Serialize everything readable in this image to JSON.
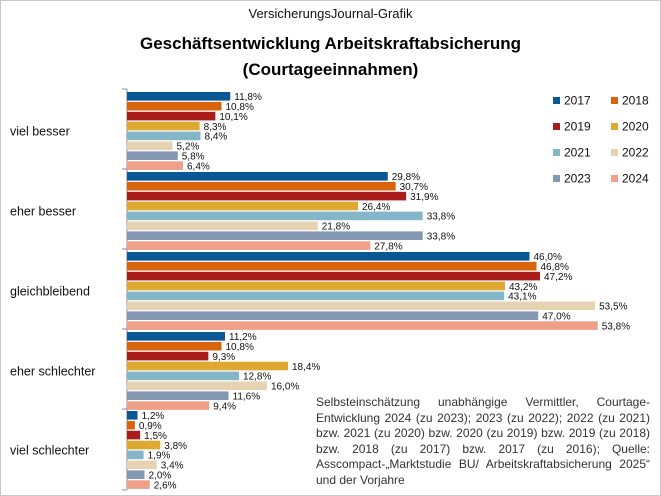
{
  "header": {
    "source_line": "VersicherungsJournal-Grafik",
    "title": "Geschäftsentwicklung  Arbeitskraftabsicherung",
    "subtitle": "(Courtageeinnahmen)"
  },
  "note": "Selbsteinschätzung unabhängige Vermittler, Courtage-Entwicklung 2024 (zu 2023); 2023 (zu 2022); 2022 (zu 2021) bzw. 2021 (zu 2020) bzw. 2020 (zu 2019) bzw. 2019 (zu 2018) bzw. 2018 (zu 2017) bzw.  2017 (zu 2016); Quelle: Asscompact-„Marktstudie BU/ Arbeitskraftabsicherung 2025“ und der Vorjahre",
  "chart_data": {
    "type": "bar",
    "orientation": "horizontal",
    "title": "Geschäftsentwicklung  Arbeitskraftabsicherung",
    "subtitle": "(Courtageeinnahmen)",
    "categories": [
      "viel besser",
      "eher besser",
      "gleichbleibend",
      "eher schlechter",
      "viel schlechter"
    ],
    "xlim": [
      0,
      60
    ],
    "unit": "%",
    "grid": false,
    "legend": "right",
    "series": [
      {
        "name": "2017",
        "color": "#0a5796",
        "values": [
          11.8,
          29.8,
          46.0,
          11.2,
          1.2
        ]
      },
      {
        "name": "2018",
        "color": "#d8650e",
        "values": [
          10.8,
          30.7,
          46.8,
          10.8,
          0.9
        ]
      },
      {
        "name": "2019",
        "color": "#a81c1c",
        "values": [
          10.1,
          31.9,
          47.2,
          9.3,
          1.5
        ]
      },
      {
        "name": "2020",
        "color": "#dfa832",
        "values": [
          8.3,
          26.4,
          43.2,
          18.4,
          3.8
        ]
      },
      {
        "name": "2021",
        "color": "#85b6c7",
        "values": [
          8.4,
          33.8,
          43.1,
          12.8,
          1.9
        ]
      },
      {
        "name": "2022",
        "color": "#e5d3b3",
        "values": [
          5.2,
          21.8,
          53.5,
          16.0,
          3.4
        ]
      },
      {
        "name": "2023",
        "color": "#8497b0",
        "values": [
          5.8,
          33.8,
          47.0,
          11.6,
          2.0
        ]
      },
      {
        "name": "2024",
        "color": "#f0a088",
        "values": [
          6.4,
          27.8,
          53.8,
          9.4,
          2.6
        ]
      }
    ],
    "labels": [
      [
        "11,8%",
        "29,8%",
        "46,0%",
        "11,2%",
        "1,2%"
      ],
      [
        "10,8%",
        "30,7%",
        "46,8%",
        "10,8%",
        "0,9%"
      ],
      [
        "10,1%",
        "31,9%",
        "47,2%",
        "9,3%",
        "1,5%"
      ],
      [
        "8,3%",
        "26,4%",
        "43,2%",
        "18,4%",
        "3,8%"
      ],
      [
        "8,4%",
        "33,8%",
        "43,1%",
        "12,8%",
        "1,9%"
      ],
      [
        "5,2%",
        "21,8%",
        "53,5%",
        "16,0%",
        "3,4%"
      ],
      [
        "5,8%",
        "33,8%",
        "47,0%",
        "11,6%",
        "2,0%"
      ],
      [
        "6,4%",
        "27,8%",
        "53,8%",
        "9,4%",
        "2,6%"
      ]
    ]
  }
}
